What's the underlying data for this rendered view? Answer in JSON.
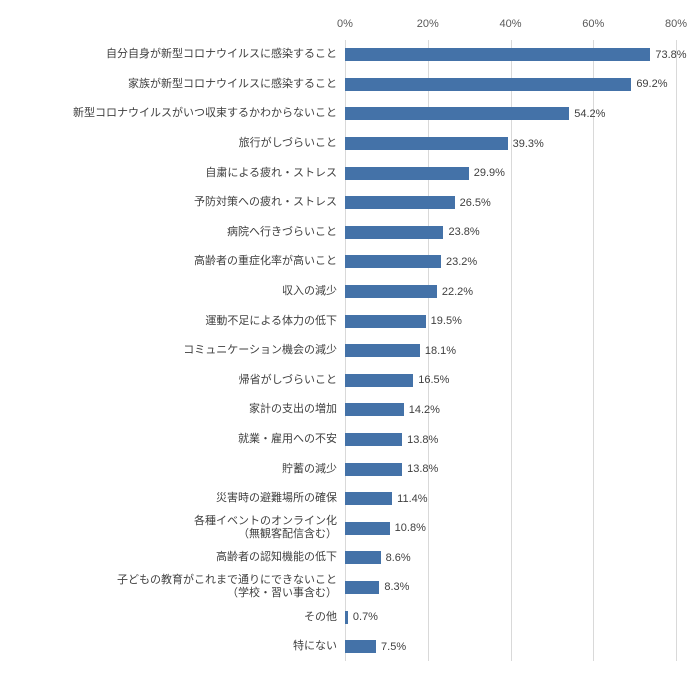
{
  "chart_data": {
    "type": "bar",
    "orientation": "horizontal",
    "title": "",
    "xlabel": "",
    "ylabel": "",
    "xlim": [
      0,
      80
    ],
    "x_ticks": [
      "0%",
      "20%",
      "40%",
      "60%",
      "80%"
    ],
    "grid": true,
    "legend": false,
    "bar_color": "#4472a8",
    "gridline_color": "#d9d9d9",
    "categories": [
      "自分自身が新型コロナウイルスに感染すること",
      "家族が新型コロナウイルスに感染すること",
      "新型コロナウイルスがいつ収束するかわからないこと",
      "旅行がしづらいこと",
      "自粛による疲れ・ストレス",
      "予防対策への疲れ・ストレス",
      "病院へ行きづらいこと",
      "高齢者の重症化率が高いこと",
      "収入の減少",
      "運動不足による体力の低下",
      "コミュニケーション機会の減少",
      "帰省がしづらいこと",
      "家計の支出の増加",
      "就業・雇用への不安",
      "貯蓄の減少",
      "災害時の避難場所の確保",
      "各種イベントのオンライン化\n（無観客配信含む）",
      "高齢者の認知機能の低下",
      "子どもの教育がこれまで通りにできないこと\n（学校・習い事含む）",
      "その他",
      "特にない"
    ],
    "values": [
      73.8,
      69.2,
      54.2,
      39.3,
      29.9,
      26.5,
      23.8,
      23.2,
      22.2,
      19.5,
      18.1,
      16.5,
      14.2,
      13.8,
      13.8,
      11.4,
      10.8,
      8.6,
      8.3,
      0.7,
      7.5
    ],
    "value_labels": [
      "73.8%",
      "69.2%",
      "54.2%",
      "39.3%",
      "29.9%",
      "26.5%",
      "23.8%",
      "23.2%",
      "22.2%",
      "19.5%",
      "18.1%",
      "16.5%",
      "14.2%",
      "13.8%",
      "13.8%",
      "11.4%",
      "10.8%",
      "8.6%",
      "8.3%",
      "0.7%",
      "7.5%"
    ]
  }
}
